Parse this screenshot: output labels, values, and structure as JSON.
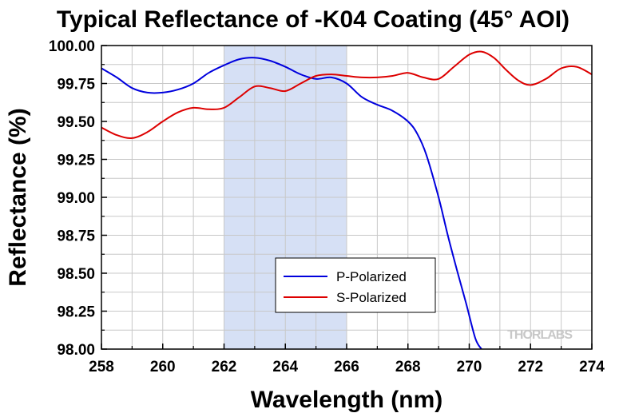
{
  "chart_data": {
    "type": "line",
    "title": "Typical Reflectance of -K04 Coating (45° AOI)",
    "xlabel": "Wavelength (nm)",
    "ylabel": "Reflectance (%)",
    "xlim": [
      258,
      274
    ],
    "ylim": [
      98.0,
      100.0
    ],
    "x_ticks": [
      "258",
      "260",
      "262",
      "264",
      "266",
      "268",
      "270",
      "272",
      "274"
    ],
    "y_ticks": [
      "98.00",
      "98.25",
      "98.50",
      "98.75",
      "99.00",
      "99.25",
      "99.50",
      "99.75",
      "100.00"
    ],
    "grid": true,
    "legend_position": "bottom-center",
    "highlight_band": {
      "x_range": [
        262,
        266
      ],
      "color": "#d6e0f5"
    },
    "series": [
      {
        "name": "P-Polarized",
        "color": "#0000dd",
        "x": [
          258.0,
          258.5,
          259.0,
          259.5,
          260.0,
          260.5,
          261.0,
          261.5,
          262.0,
          262.5,
          263.0,
          263.5,
          264.0,
          264.5,
          265.0,
          265.5,
          266.0,
          266.5,
          267.0,
          267.5,
          268.0,
          268.3,
          268.6,
          269.0,
          269.3,
          269.6,
          269.9,
          270.2,
          270.4
        ],
        "y": [
          99.85,
          99.79,
          99.72,
          99.69,
          99.69,
          99.71,
          99.75,
          99.82,
          99.87,
          99.91,
          99.92,
          99.9,
          99.86,
          99.81,
          99.78,
          99.79,
          99.75,
          99.66,
          99.61,
          99.57,
          99.5,
          99.42,
          99.28,
          99.0,
          98.75,
          98.52,
          98.3,
          98.07,
          98.0
        ]
      },
      {
        "name": "S-Polarized",
        "color": "#dd0000",
        "x": [
          258.0,
          258.5,
          259.0,
          259.5,
          260.0,
          260.5,
          261.0,
          261.5,
          262.0,
          262.5,
          263.0,
          263.5,
          264.0,
          264.5,
          265.0,
          265.5,
          266.0,
          266.5,
          267.0,
          267.5,
          268.0,
          268.5,
          269.0,
          269.5,
          270.0,
          270.4,
          270.8,
          271.2,
          271.6,
          272.0,
          272.5,
          273.0,
          273.5,
          274.0
        ],
        "y": [
          99.46,
          99.41,
          99.39,
          99.43,
          99.5,
          99.56,
          99.59,
          99.58,
          99.59,
          99.66,
          99.73,
          99.72,
          99.7,
          99.75,
          99.8,
          99.81,
          99.8,
          99.79,
          99.79,
          99.8,
          99.82,
          99.79,
          99.78,
          99.86,
          99.94,
          99.96,
          99.92,
          99.84,
          99.77,
          99.74,
          99.78,
          99.85,
          99.86,
          99.81
        ]
      }
    ],
    "watermark": "THORLABS"
  }
}
